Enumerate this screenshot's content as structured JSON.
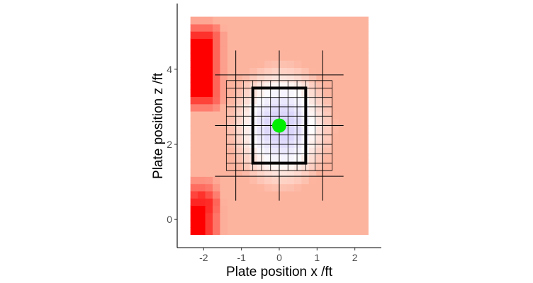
{
  "chart_data": {
    "type": "heatmap",
    "title": "",
    "xlabel": "Plate position x /ft",
    "ylabel": "Plate position z /ft",
    "xlim": [
      -2.7,
      2.7
    ],
    "ylim": [
      -0.75,
      5.75
    ],
    "x_ticks": [
      -2,
      -1,
      0,
      1,
      2
    ],
    "y_ticks": [
      0,
      2,
      4
    ],
    "x_tick_labels": [
      "-2",
      "-1",
      "0",
      "1",
      "2"
    ],
    "y_tick_labels": [
      "0",
      "2",
      "4"
    ],
    "grid": false,
    "heatmap_extent": {
      "x": [
        -2.35,
        2.35
      ],
      "z": [
        -0.4,
        5.4
      ]
    },
    "colors": {
      "base": "#fdb49f",
      "hot": "#ff0000",
      "cool": "#dcd6fb",
      "neutral": "#ffffff",
      "strike_zone": "#000000",
      "center_marker": "#00ee00",
      "grid_lines": "#000000"
    },
    "hot_regions": [
      {
        "x": [
          -2.35,
          -1.85
        ],
        "z": [
          3.25,
          4.9
        ],
        "intensity": 1.0
      },
      {
        "x": [
          -2.35,
          -1.9
        ],
        "z": [
          -0.4,
          0.4
        ],
        "intensity": 1.0
      },
      {
        "x": [
          -2.25,
          -1.95
        ],
        "z": [
          0.5,
          0.8
        ],
        "intensity": 0.6
      }
    ],
    "cool_region": {
      "center": [
        0.05,
        2.5
      ],
      "radius_x": 0.85,
      "radius_z": 1.05
    },
    "strike_zone": {
      "x": [
        -0.7,
        0.7
      ],
      "z": [
        1.5,
        3.5
      ]
    },
    "inner_grid": {
      "x_lines": [
        -1.4,
        -1.15,
        -0.95,
        -0.7,
        -0.47,
        -0.23,
        0,
        0.23,
        0.47,
        0.7,
        0.95,
        1.15,
        1.4
      ],
      "z_lines": [
        1.3,
        1.5,
        1.75,
        2.0,
        2.25,
        2.5,
        2.75,
        3.0,
        3.25,
        3.5,
        3.7
      ],
      "x_extent": [
        -1.4,
        1.4
      ],
      "z_extent": [
        1.3,
        3.7
      ]
    },
    "outer_grid": {
      "x_lines": [
        -1.15,
        0,
        1.15
      ],
      "x_extent": [
        0.5,
        4.5
      ],
      "z_lines": [
        1.15,
        2.5,
        3.85
      ],
      "z_extent": [
        -1.7,
        1.7
      ]
    },
    "center_point": {
      "x": 0,
      "z": 2.5
    }
  }
}
